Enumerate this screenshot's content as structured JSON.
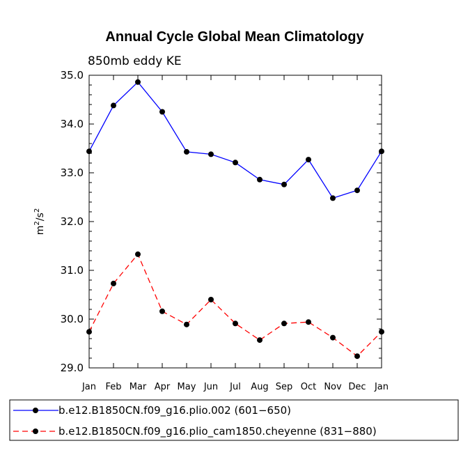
{
  "chart_data": {
    "type": "line",
    "title": "Annual Cycle Global Mean Climatology",
    "subtitle": "850mb eddy KE",
    "ylabel": "m",
    "ylabel_sup1": "2",
    "ylabel_slash": "/s",
    "ylabel_sup2": "2",
    "xlabel": "",
    "ylim": [
      29.0,
      35.0
    ],
    "yticks": [
      29.0,
      30.0,
      31.0,
      32.0,
      33.0,
      34.0,
      35.0
    ],
    "ytick_labels": [
      "29.0",
      "30.0",
      "31.0",
      "32.0",
      "33.0",
      "34.0",
      "35.0"
    ],
    "categories": [
      "Jan",
      "Feb",
      "Mar",
      "Apr",
      "May",
      "Jun",
      "Jul",
      "Aug",
      "Sep",
      "Oct",
      "Nov",
      "Dec",
      "Jan"
    ],
    "series": [
      {
        "name": "b.e12.B1850CN.f09_g16.plio.002 (601−650)",
        "color": "#0000ff",
        "dash": "solid",
        "values": [
          33.44,
          34.38,
          34.86,
          34.25,
          33.43,
          33.38,
          33.21,
          32.86,
          32.76,
          33.27,
          32.48,
          32.64,
          33.44
        ]
      },
      {
        "name": "b.e12.B1850CN.f09_g16.plio_cam1850.cheyenne (831−880)",
        "color": "#ff0000",
        "dash": "dashed",
        "values": [
          29.74,
          30.73,
          31.33,
          30.16,
          29.89,
          30.4,
          29.91,
          29.57,
          29.91,
          29.94,
          29.62,
          29.24,
          29.74
        ]
      }
    ],
    "marker_color": "#000000",
    "legend_position": "bottom"
  }
}
